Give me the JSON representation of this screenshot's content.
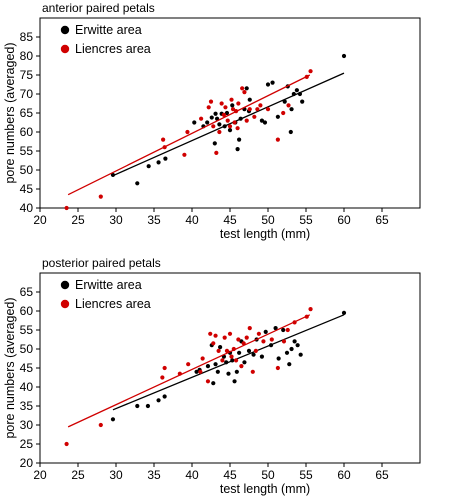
{
  "chart_data": [
    {
      "type": "scatter",
      "title": "anterior paired petals",
      "xlabel": "test length (mm)",
      "ylabel": "pore numbers (averaged)",
      "xlim": [
        20,
        70
      ],
      "ylim": [
        40,
        90
      ],
      "xticks": [
        "20",
        "25",
        "30",
        "35",
        "40",
        "45",
        "50",
        "55",
        "60",
        "65"
      ],
      "yticks": [
        "40",
        "45",
        "50",
        "55",
        "60",
        "65",
        "70",
        "75",
        "80",
        "85"
      ],
      "legend_position": "top-left",
      "grid": false,
      "series": [
        {
          "name": "Erwitte area",
          "color": "#000000",
          "points": [
            [
              29.6,
              48.7
            ],
            [
              32.8,
              46.5
            ],
            [
              34.3,
              51.0
            ],
            [
              35.6,
              52.0
            ],
            [
              36.5,
              53.0
            ],
            [
              40.3,
              62.5
            ],
            [
              41.5,
              61.5
            ],
            [
              42.0,
              62.5
            ],
            [
              42.6,
              63.8
            ],
            [
              43.0,
              57.0
            ],
            [
              43.1,
              64.8
            ],
            [
              43.3,
              63.5
            ],
            [
              43.6,
              62.0
            ],
            [
              43.9,
              64.8
            ],
            [
              44.3,
              61.5
            ],
            [
              44.6,
              65.0
            ],
            [
              45.0,
              60.5
            ],
            [
              45.3,
              67.0
            ],
            [
              45.7,
              62.5
            ],
            [
              46.0,
              55.5
            ],
            [
              46.2,
              58.0
            ],
            [
              46.4,
              63.5
            ],
            [
              46.9,
              66.0
            ],
            [
              47.2,
              71.5
            ],
            [
              47.5,
              65.5
            ],
            [
              47.6,
              68.5
            ],
            [
              49.2,
              63.0
            ],
            [
              49.6,
              62.5
            ],
            [
              50.0,
              72.5
            ],
            [
              50.6,
              73.0
            ],
            [
              51.3,
              64.0
            ],
            [
              52.2,
              68.0
            ],
            [
              52.6,
              72.0
            ],
            [
              53.0,
              60.0
            ],
            [
              53.1,
              66.0
            ],
            [
              53.4,
              70.0
            ],
            [
              53.8,
              71.0
            ],
            [
              54.2,
              70.0
            ],
            [
              54.5,
              68.0
            ],
            [
              60.0,
              80.0
            ]
          ],
          "fit": [
            [
              29.6,
              48.5
            ],
            [
              60.0,
              75.5
            ]
          ]
        },
        {
          "name": "Liencres area",
          "color": "#d00000",
          "points": [
            [
              23.5,
              40.0
            ],
            [
              28.0,
              43.0
            ],
            [
              36.2,
              58.0
            ],
            [
              36.4,
              56.0
            ],
            [
              39.0,
              54.0
            ],
            [
              39.4,
              60.0
            ],
            [
              41.2,
              63.5
            ],
            [
              42.2,
              66.5
            ],
            [
              42.5,
              68.0
            ],
            [
              42.8,
              61.5
            ],
            [
              43.2,
              54.5
            ],
            [
              43.6,
              60.0
            ],
            [
              43.9,
              67.5
            ],
            [
              44.2,
              64.5
            ],
            [
              44.4,
              66.5
            ],
            [
              44.7,
              63.0
            ],
            [
              45.0,
              61.5
            ],
            [
              45.2,
              68.5
            ],
            [
              45.4,
              66.0
            ],
            [
              45.6,
              62.5
            ],
            [
              45.8,
              65.5
            ],
            [
              46.0,
              61.0
            ],
            [
              46.1,
              67.5
            ],
            [
              46.6,
              71.5
            ],
            [
              46.9,
              70.5
            ],
            [
              47.2,
              63.0
            ],
            [
              47.6,
              66.0
            ],
            [
              48.2,
              64.0
            ],
            [
              48.6,
              66.0
            ],
            [
              49.0,
              67.0
            ],
            [
              50.0,
              66.0
            ],
            [
              51.3,
              58.0
            ],
            [
              52.0,
              65.0
            ],
            [
              52.7,
              67.0
            ],
            [
              55.1,
              74.5
            ],
            [
              55.6,
              76.0
            ]
          ],
          "fit": [
            [
              23.7,
              43.5
            ],
            [
              55.5,
              75.0
            ]
          ]
        }
      ]
    },
    {
      "type": "scatter",
      "title": "posterior paired petals",
      "xlabel": "test length (mm)",
      "ylabel": "pore numbers (averaged)",
      "xlim": [
        20,
        70
      ],
      "ylim": [
        20,
        70
      ],
      "xticks": [
        "20",
        "25",
        "30",
        "35",
        "40",
        "45",
        "50",
        "55",
        "60",
        "65"
      ],
      "yticks": [
        "20",
        "25",
        "30",
        "35",
        "40",
        "45",
        "50",
        "55",
        "60",
        "65"
      ],
      "legend_position": "top-left",
      "grid": false,
      "series": [
        {
          "name": "Erwitte area",
          "color": "#000000",
          "points": [
            [
              29.6,
              31.5
            ],
            [
              32.8,
              35.0
            ],
            [
              34.2,
              35.0
            ],
            [
              35.6,
              36.5
            ],
            [
              36.4,
              37.5
            ],
            [
              40.6,
              44.0
            ],
            [
              41.0,
              44.5
            ],
            [
              42.1,
              45.5
            ],
            [
              42.6,
              51.0
            ],
            [
              42.8,
              41.0
            ],
            [
              43.1,
              46.0
            ],
            [
              43.4,
              44.0
            ],
            [
              43.7,
              50.5
            ],
            [
              44.2,
              48.0
            ],
            [
              44.5,
              46.5
            ],
            [
              44.8,
              43.5
            ],
            [
              45.0,
              49.0
            ],
            [
              45.3,
              47.0
            ],
            [
              45.6,
              41.5
            ],
            [
              45.9,
              44.0
            ],
            [
              46.2,
              49.0
            ],
            [
              46.5,
              52.0
            ],
            [
              46.9,
              46.5
            ],
            [
              47.5,
              49.5
            ],
            [
              48.1,
              48.5
            ],
            [
              48.5,
              52.5
            ],
            [
              49.2,
              48.0
            ],
            [
              49.7,
              54.5
            ],
            [
              50.4,
              51.0
            ],
            [
              51.0,
              55.5
            ],
            [
              51.4,
              47.5
            ],
            [
              52.0,
              55.0
            ],
            [
              52.5,
              49.0
            ],
            [
              52.8,
              46.0
            ],
            [
              53.1,
              50.0
            ],
            [
              53.5,
              52.0
            ],
            [
              53.9,
              51.0
            ],
            [
              54.3,
              48.5
            ],
            [
              60.0,
              59.5
            ]
          ],
          "fit": [
            [
              29.6,
              34.0
            ],
            [
              60.0,
              59.0
            ]
          ]
        },
        {
          "name": "Liencres area",
          "color": "#d00000",
          "points": [
            [
              23.5,
              25.0
            ],
            [
              28.0,
              30.0
            ],
            [
              36.1,
              42.5
            ],
            [
              36.4,
              45.0
            ],
            [
              38.4,
              43.5
            ],
            [
              39.5,
              46.0
            ],
            [
              41.1,
              44.0
            ],
            [
              41.4,
              47.5
            ],
            [
              42.1,
              41.5
            ],
            [
              42.4,
              54.0
            ],
            [
              42.8,
              51.5
            ],
            [
              43.1,
              53.5
            ],
            [
              43.5,
              49.5
            ],
            [
              44.0,
              47.0
            ],
            [
              44.3,
              53.0
            ],
            [
              44.6,
              49.5
            ],
            [
              45.0,
              54.0
            ],
            [
              45.2,
              48.0
            ],
            [
              45.5,
              50.0
            ],
            [
              45.8,
              47.0
            ],
            [
              46.1,
              52.5
            ],
            [
              46.5,
              45.5
            ],
            [
              46.8,
              51.5
            ],
            [
              47.2,
              53.0
            ],
            [
              47.6,
              55.5
            ],
            [
              48.0,
              44.0
            ],
            [
              48.4,
              49.5
            ],
            [
              48.8,
              54.0
            ],
            [
              49.4,
              52.0
            ],
            [
              50.5,
              52.5
            ],
            [
              51.3,
              45.0
            ],
            [
              52.1,
              52.0
            ],
            [
              52.6,
              55.0
            ],
            [
              53.5,
              57.0
            ],
            [
              55.1,
              58.5
            ],
            [
              55.6,
              60.5
            ]
          ],
          "fit": [
            [
              23.7,
              29.5
            ],
            [
              55.5,
              59.0
            ]
          ]
        }
      ]
    }
  ]
}
